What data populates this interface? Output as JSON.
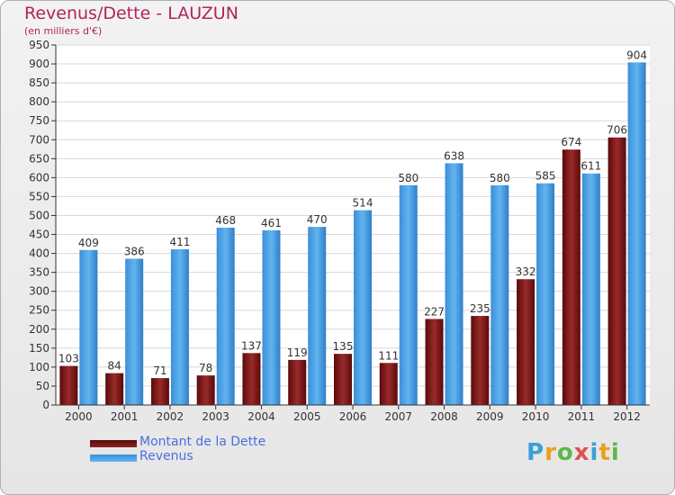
{
  "title": "Revenus/Dette - LAUZUN",
  "subtitle": "(en milliers d'€)",
  "logo": "Proxiti",
  "colors": {
    "debt": "#7a1c1c",
    "revenue": "#4aa3e8",
    "title": "#b0245e",
    "legend_text": "#4a6fe0"
  },
  "chart_data": {
    "type": "bar",
    "title": "Revenus/Dette - LAUZUN",
    "ylabel": "(en milliers d'€)",
    "ylim": [
      0,
      950
    ],
    "yticks": [
      0,
      50,
      100,
      150,
      200,
      250,
      300,
      350,
      400,
      450,
      500,
      550,
      600,
      650,
      700,
      750,
      800,
      850,
      900,
      950
    ],
    "categories": [
      "2000",
      "2001",
      "2002",
      "2003",
      "2004",
      "2005",
      "2006",
      "2007",
      "2008",
      "2009",
      "2010",
      "2011",
      "2012"
    ],
    "series": [
      {
        "name": "Montant de la Dette",
        "values": [
          103,
          84,
          71,
          78,
          137,
          119,
          135,
          111,
          227,
          235,
          332,
          674,
          706
        ]
      },
      {
        "name": "Revenus",
        "values": [
          409,
          386,
          411,
          468,
          461,
          470,
          514,
          580,
          638,
          580,
          585,
          611,
          904
        ]
      }
    ],
    "legend": "bottom-left"
  }
}
